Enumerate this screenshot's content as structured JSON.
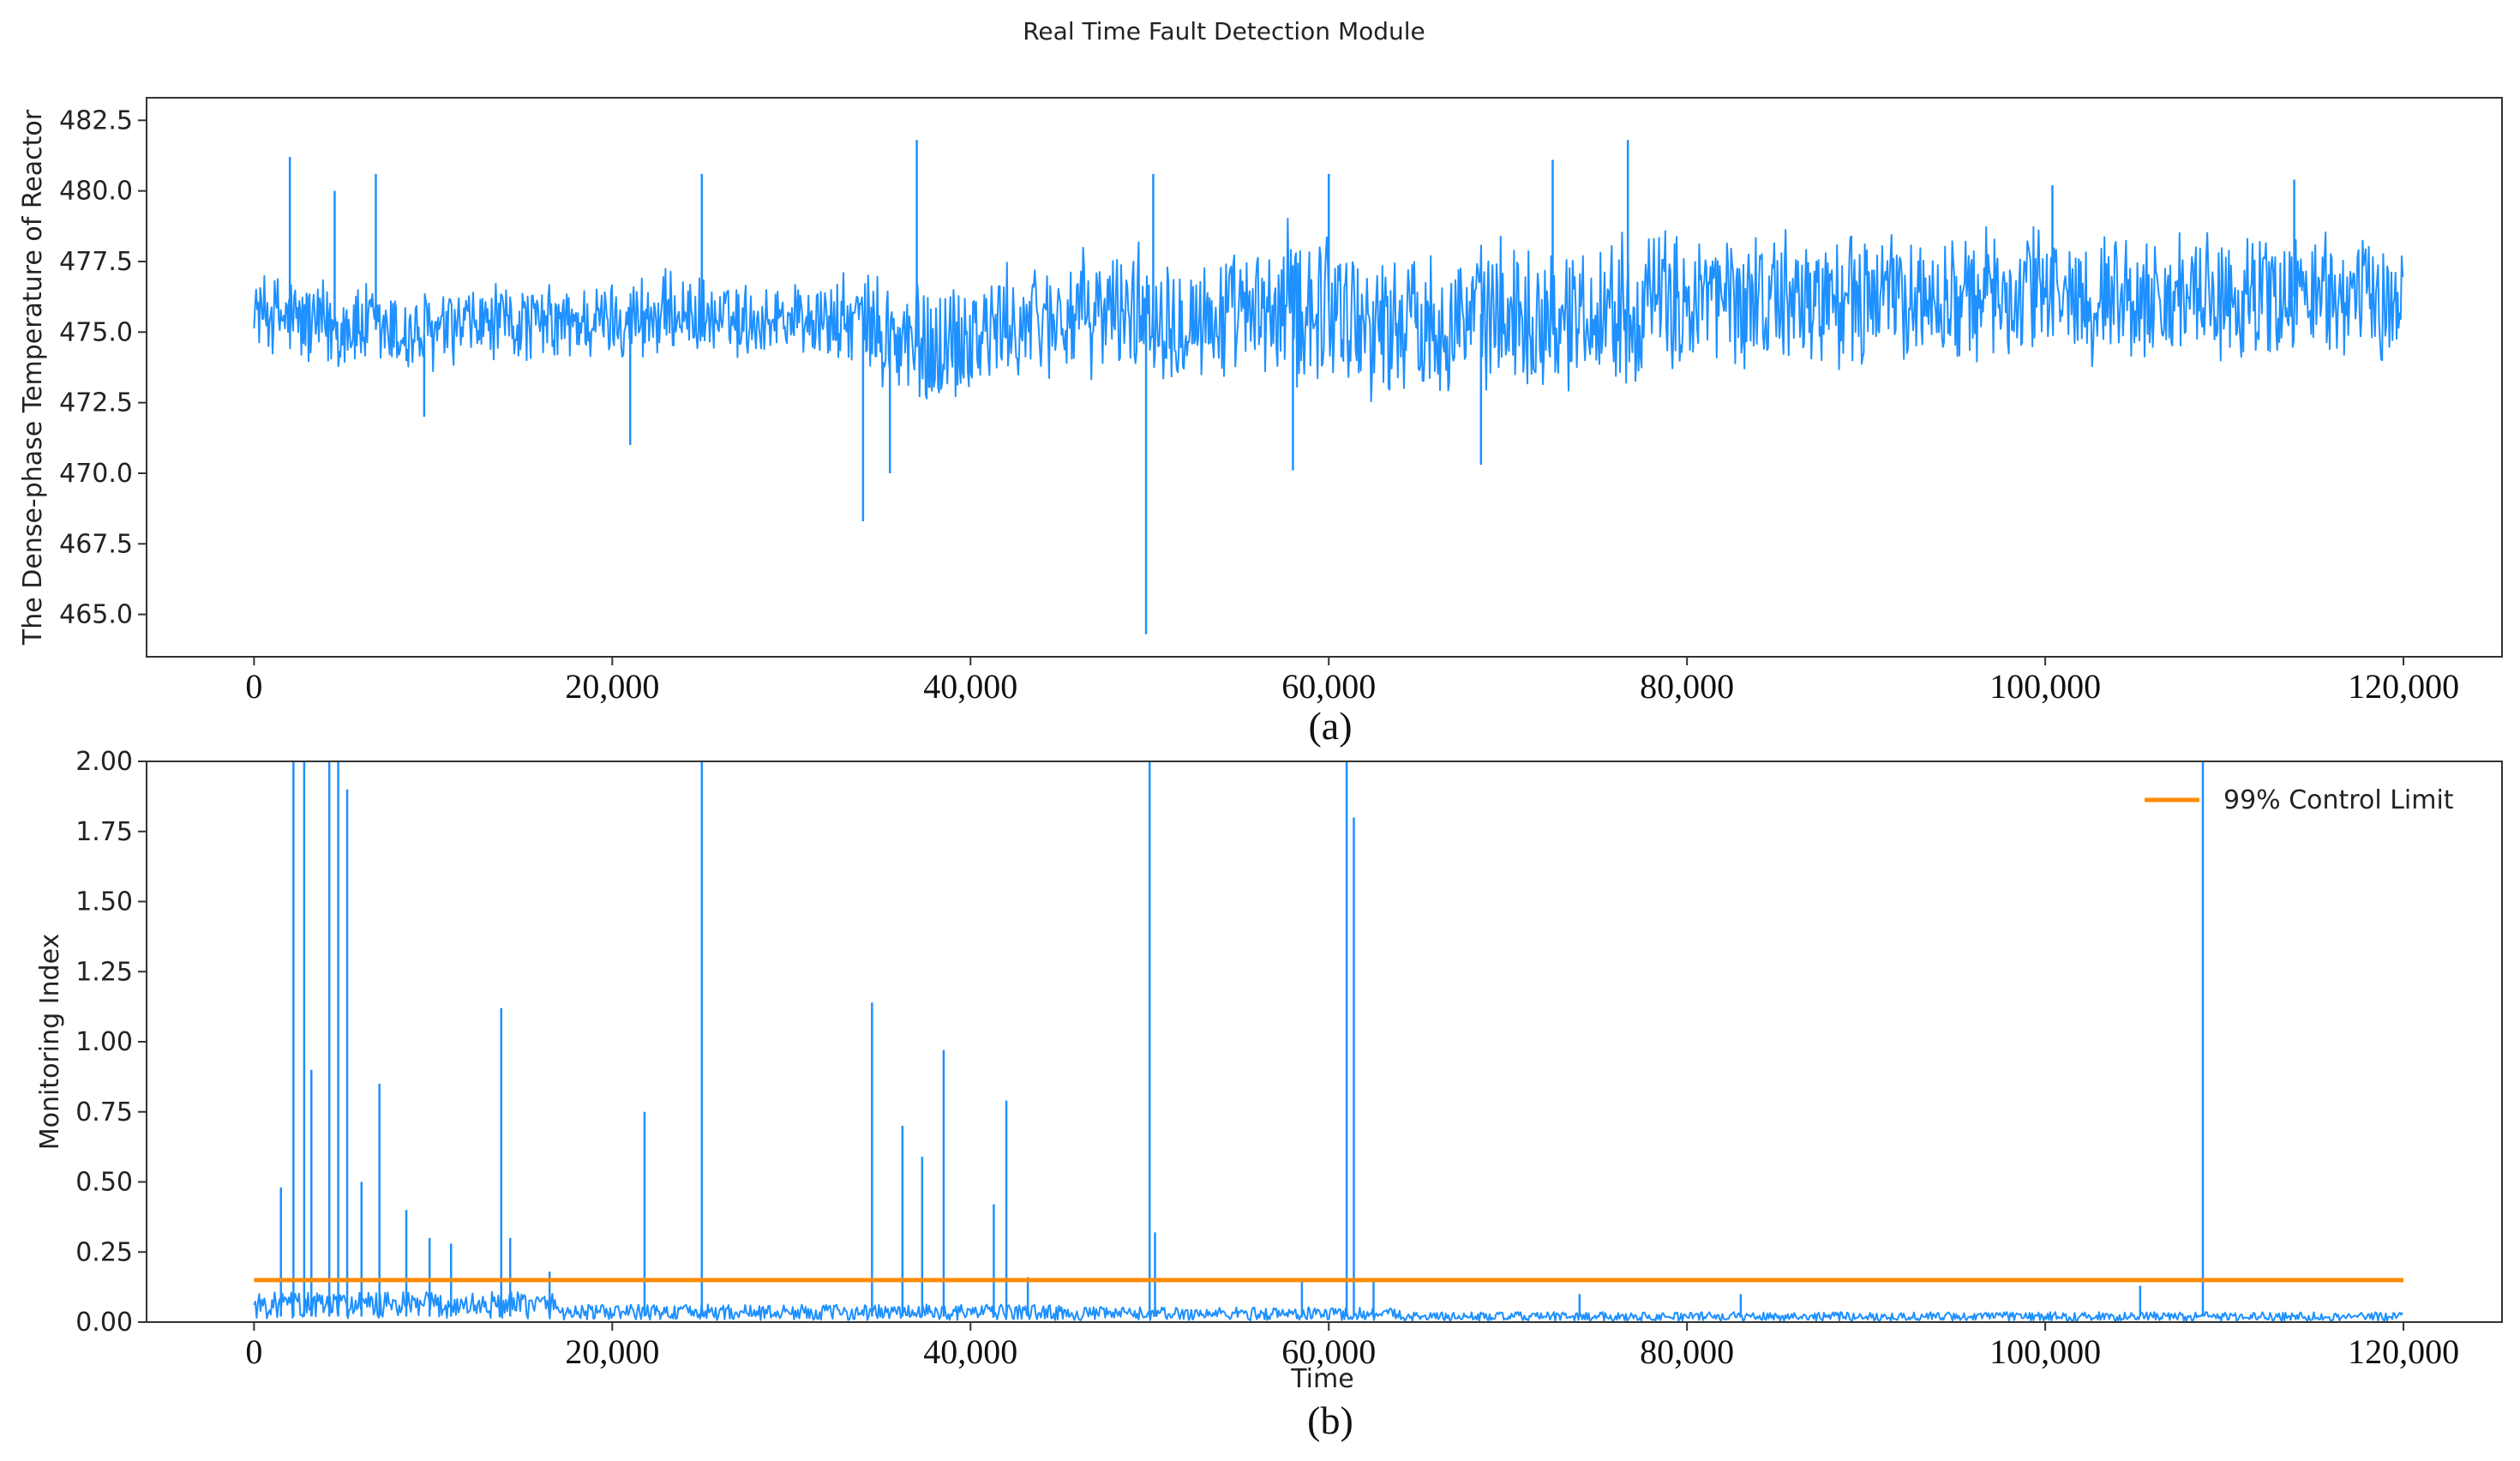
{
  "figure": {
    "title": "Real Time Fault Detection Module"
  },
  "chart_data": [
    {
      "type": "line",
      "panel_label": "(a)",
      "xlabel": "",
      "ylabel": "The Dense-phase Temperature of Reactor",
      "xlim": [
        -6000,
        125500
      ],
      "ylim": [
        463.5,
        483.3
      ],
      "x_ticks": [
        0,
        20000,
        40000,
        60000,
        80000,
        100000,
        120000
      ],
      "x_tick_labels": [
        "0",
        "20,000",
        "40,000",
        "60,000",
        "80,000",
        "100,000",
        "120,000"
      ],
      "y_ticks": [
        465.0,
        467.5,
        470.0,
        472.5,
        475.0,
        477.5,
        480.0,
        482.5
      ],
      "y_tick_labels": [
        "465.0",
        "467.5",
        "470.0",
        "472.5",
        "475.0",
        "477.5",
        "480.0",
        "482.5"
      ],
      "grid": false,
      "series": [
        {
          "color": "#1e90ff",
          "x": [
            0,
            2000,
            4000,
            6000,
            8000,
            10000,
            12000,
            14000,
            16000,
            18000,
            20000,
            22000,
            24000,
            26000,
            28000,
            30000,
            32000,
            34000,
            36000,
            38000,
            40000,
            42000,
            44000,
            46000,
            48000,
            50000,
            52000,
            54000,
            56000,
            58000,
            60000,
            62000,
            64000,
            66000,
            68000,
            70000,
            72000,
            74000,
            76000,
            78000,
            80000,
            82000,
            84000,
            86000,
            88000,
            90000,
            92000,
            94000,
            96000,
            98000,
            100000,
            102000,
            104000,
            106000,
            108000,
            110000,
            112000,
            114000,
            116000,
            118000,
            120000
          ],
          "y_low": [
            474.5,
            473.6,
            473.3,
            473.4,
            473.0,
            473.2,
            473.6,
            473.7,
            473.8,
            473.7,
            473.9,
            473.7,
            474.1,
            473.9,
            473.9,
            474.1,
            473.6,
            473.6,
            471.5,
            471.8,
            472.3,
            472.8,
            473.2,
            473.1,
            473.4,
            473.2,
            473.0,
            472.9,
            472.9,
            472.5,
            472.9,
            472.4,
            472.6,
            472.6,
            472.8,
            472.9,
            472.6,
            472.9,
            472.9,
            473.0,
            473.2,
            473.3,
            473.5,
            473.5,
            473.4,
            473.5,
            473.6,
            473.6,
            473.6,
            473.7,
            473.8,
            473.7,
            473.8,
            473.6,
            473.5,
            473.6,
            473.8,
            473.6,
            473.9,
            473.7,
            473.8
          ],
          "y_high": [
            477.2,
            477.3,
            477.1,
            477.0,
            476.8,
            476.6,
            476.8,
            476.9,
            476.8,
            476.9,
            477.0,
            477.4,
            477.2,
            476.9,
            476.9,
            477.0,
            477.1,
            477.2,
            477.4,
            477.2,
            477.6,
            477.5,
            477.8,
            478.0,
            478.2,
            478.4,
            478.3,
            478.0,
            478.1,
            479.4,
            479.3,
            478.2,
            478.2,
            478.3,
            478.4,
            478.6,
            478.4,
            478.5,
            478.9,
            478.9,
            479.0,
            478.9,
            478.9,
            478.8,
            478.8,
            478.9,
            478.8,
            478.6,
            478.9,
            478.9,
            479.1,
            478.8,
            478.8,
            478.7,
            478.6,
            478.8,
            478.9,
            478.9,
            478.9,
            478.6,
            478.1
          ],
          "spikes": [
            {
              "x": 2000,
              "y": 481.2
            },
            {
              "x": 4500,
              "y": 480.0
            },
            {
              "x": 6800,
              "y": 480.6
            },
            {
              "x": 9500,
              "y": 472.0
            },
            {
              "x": 21000,
              "y": 471.0
            },
            {
              "x": 25000,
              "y": 480.6
            },
            {
              "x": 34000,
              "y": 468.3
            },
            {
              "x": 35500,
              "y": 470.0
            },
            {
              "x": 37000,
              "y": 481.8
            },
            {
              "x": 49800,
              "y": 464.3
            },
            {
              "x": 50200,
              "y": 480.6
            },
            {
              "x": 58000,
              "y": 470.1
            },
            {
              "x": 60000,
              "y": 480.6
            },
            {
              "x": 68500,
              "y": 470.3
            },
            {
              "x": 72500,
              "y": 481.1
            },
            {
              "x": 76700,
              "y": 481.8
            },
            {
              "x": 100400,
              "y": 480.2
            },
            {
              "x": 113900,
              "y": 480.4
            }
          ]
        }
      ]
    },
    {
      "type": "line",
      "panel_label": "(b)",
      "xlabel": "Time",
      "ylabel": "Monitoring Index",
      "xlim": [
        -6000,
        125500
      ],
      "ylim": [
        0.0,
        2.0
      ],
      "x_ticks": [
        0,
        20000,
        40000,
        60000,
        80000,
        100000,
        120000
      ],
      "x_tick_labels": [
        "0",
        "20,000",
        "40,000",
        "60,000",
        "80,000",
        "100,000",
        "120,000"
      ],
      "y_ticks": [
        0.0,
        0.25,
        0.5,
        0.75,
        1.0,
        1.25,
        1.5,
        1.75,
        2.0
      ],
      "y_tick_labels": [
        "0.00",
        "0.25",
        "0.50",
        "0.75",
        "1.00",
        "1.25",
        "1.50",
        "1.75",
        "2.00"
      ],
      "grid": false,
      "legend": {
        "placement": "top-right"
      },
      "series": [
        {
          "color": "#1e90ff",
          "baseline": 0.02,
          "spikes": [
            {
              "x": 1500,
              "y": 0.48
            },
            {
              "x": 2200,
              "y": 2.0
            },
            {
              "x": 2800,
              "y": 2.0
            },
            {
              "x": 3200,
              "y": 0.9
            },
            {
              "x": 4200,
              "y": 2.0
            },
            {
              "x": 4700,
              "y": 2.0
            },
            {
              "x": 5200,
              "y": 1.9
            },
            {
              "x": 6000,
              "y": 0.5
            },
            {
              "x": 7000,
              "y": 0.85
            },
            {
              "x": 8500,
              "y": 0.4
            },
            {
              "x": 9800,
              "y": 0.3
            },
            {
              "x": 11000,
              "y": 0.28
            },
            {
              "x": 13800,
              "y": 1.12
            },
            {
              "x": 14300,
              "y": 0.3
            },
            {
              "x": 16500,
              "y": 0.18
            },
            {
              "x": 21800,
              "y": 0.75
            },
            {
              "x": 25000,
              "y": 2.0
            },
            {
              "x": 34500,
              "y": 1.14
            },
            {
              "x": 36200,
              "y": 0.7
            },
            {
              "x": 37300,
              "y": 0.59
            },
            {
              "x": 38500,
              "y": 0.97
            },
            {
              "x": 41300,
              "y": 0.42
            },
            {
              "x": 42000,
              "y": 0.79
            },
            {
              "x": 43200,
              "y": 0.16
            },
            {
              "x": 50000,
              "y": 2.0
            },
            {
              "x": 50300,
              "y": 0.32
            },
            {
              "x": 58500,
              "y": 0.15
            },
            {
              "x": 61000,
              "y": 2.0
            },
            {
              "x": 61400,
              "y": 1.8
            },
            {
              "x": 62500,
              "y": 0.15
            },
            {
              "x": 74000,
              "y": 0.1
            },
            {
              "x": 83000,
              "y": 0.1
            },
            {
              "x": 105300,
              "y": 0.13
            },
            {
              "x": 108800,
              "y": 2.0
            }
          ]
        },
        {
          "name": "99% Control Limit",
          "color": "#ff8c00",
          "x": [
            0,
            120000
          ],
          "y": [
            0.15,
            0.15
          ]
        }
      ]
    }
  ]
}
